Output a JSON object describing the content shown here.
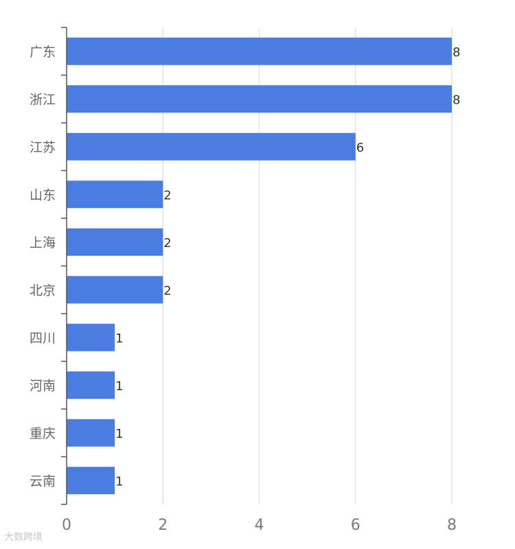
{
  "chart_data": {
    "type": "bar",
    "orientation": "horizontal",
    "categories": [
      "广东",
      "浙江",
      "江苏",
      "山东",
      "上海",
      "北京",
      "四川",
      "河南",
      "重庆",
      "云南"
    ],
    "values": [
      8,
      8,
      6,
      2,
      2,
      2,
      1,
      1,
      1,
      1
    ],
    "xlim": [
      0,
      8
    ],
    "x_ticks": [
      "0",
      "2",
      "4",
      "6",
      "8"
    ],
    "grid": "vertical",
    "data_labels": true,
    "bar_color": "#4a7de0",
    "grid_color": "#dde3ee",
    "title": "",
    "xlabel": "",
    "ylabel": ""
  },
  "watermark": "大数跨境"
}
